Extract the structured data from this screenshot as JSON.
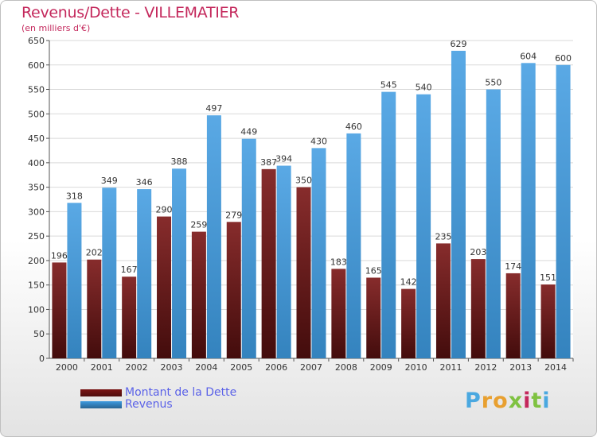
{
  "header": {
    "title": "Revenus/Dette - VILLEMATIER",
    "subtitle": "(en milliers d'€)"
  },
  "legend": {
    "items": [
      {
        "label": "Montant de la Dette",
        "color": "#7a1515"
      },
      {
        "label": "Revenus",
        "color": "#3d9ae0"
      }
    ]
  },
  "logo": {
    "text": "Proxiti",
    "letter_colors": [
      "#4aa8e0",
      "#e8a030",
      "#e8a030",
      "#7fc241",
      "#c4285c",
      "#7fc241",
      "#4aa8e0"
    ]
  },
  "colors": {
    "debt": "#7a1515",
    "revenue": "#3d9ae0",
    "grid": "#d9d9d9",
    "title": "#c4285c"
  },
  "chart_data": {
    "type": "bar",
    "categories": [
      "2000",
      "2001",
      "2002",
      "2003",
      "2004",
      "2005",
      "2006",
      "2007",
      "2008",
      "2009",
      "2010",
      "2011",
      "2012",
      "2013",
      "2014"
    ],
    "series": [
      {
        "name": "Montant de la Dette",
        "values": [
          196,
          202,
          167,
          290,
          259,
          279,
          387,
          350,
          183,
          165,
          142,
          235,
          203,
          174,
          151
        ]
      },
      {
        "name": "Revenus",
        "values": [
          318,
          349,
          346,
          388,
          497,
          449,
          394,
          430,
          460,
          545,
          540,
          629,
          550,
          604,
          600
        ]
      }
    ],
    "ylim": [
      0,
      650
    ],
    "yticks": [
      0,
      50,
      100,
      150,
      200,
      250,
      300,
      350,
      400,
      450,
      500,
      550,
      600,
      650
    ],
    "grid": true,
    "legend_position": "bottom-left"
  }
}
